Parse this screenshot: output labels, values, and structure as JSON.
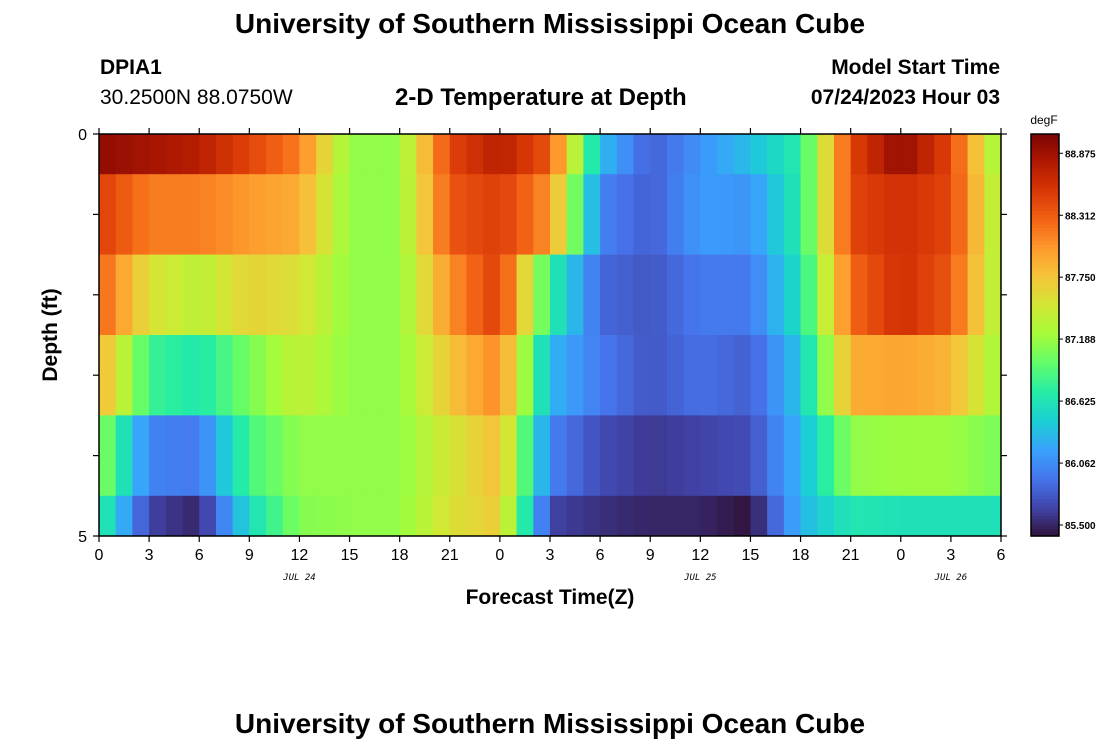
{
  "header": {
    "title": "University of Southern Mississippi Ocean Cube",
    "station_id": "DPIA1",
    "coordinates": "30.2500N  88.0750W",
    "chart_title": "2-D Temperature at Depth",
    "model_label": "Model Start Time",
    "model_time": "07/24/2023 Hour 03"
  },
  "footer": {
    "title": "University of Southern Mississippi Ocean Cube"
  },
  "colors": {
    "palette": [
      "#30123b",
      "#4145ab",
      "#4675ed",
      "#39a2fc",
      "#1bcfd4",
      "#24eca6",
      "#61fc6c",
      "#a4fc3b",
      "#d1e834",
      "#f3c63a",
      "#fe9b2d",
      "#f36315",
      "#d93806",
      "#b11901",
      "#7a0403"
    ]
  },
  "chart_data": {
    "type": "heatmap",
    "title": "2-D Temperature at Depth",
    "xlabel": "Forecast Time(Z)",
    "ylabel": "Depth (ft)",
    "x_start_hour": 0,
    "x_end_hour": 54,
    "x_tick_step_hours": 3,
    "x_tick_labels": [
      "0",
      "3",
      "6",
      "9",
      "12",
      "15",
      "18",
      "21",
      "0",
      "3",
      "6",
      "9",
      "12",
      "15",
      "18",
      "21",
      "0",
      "3",
      "6"
    ],
    "date_labels": [
      {
        "label": "JUL 24",
        "hour": 12
      },
      {
        "label": "JUL 25",
        "hour": 36
      },
      {
        "label": "JUL 26",
        "hour": 51
      }
    ],
    "y_range": [
      0,
      5
    ],
    "y_tick_labels": [
      {
        "value": 0,
        "label": "0"
      },
      {
        "value": 5,
        "label": "5"
      }
    ],
    "y_minor_ticks": [
      0,
      1,
      2,
      3,
      4,
      5
    ],
    "depth_layers": [
      {
        "top": 0.0,
        "bottom": 0.5
      },
      {
        "top": 0.5,
        "bottom": 1.5
      },
      {
        "top": 1.5,
        "bottom": 2.5
      },
      {
        "top": 2.5,
        "bottom": 3.5
      },
      {
        "top": 3.5,
        "bottom": 4.5
      },
      {
        "top": 4.5,
        "bottom": 5.0
      }
    ],
    "keyframes_hours": [
      0,
      3,
      6,
      9,
      12,
      15,
      18,
      21,
      24,
      27,
      30,
      33,
      36,
      39,
      42,
      45,
      48,
      51,
      54
    ],
    "temperature_degF": [
      [
        88.95,
        88.85,
        88.75,
        88.45,
        88.15,
        87.15,
        87.15,
        88.45,
        88.75,
        88.35,
        86.35,
        85.8,
        86.1,
        86.35,
        86.7,
        88.45,
        88.95,
        88.45,
        87.1
      ],
      [
        88.5,
        88.15,
        88.15,
        88.0,
        87.9,
        87.15,
        87.15,
        88.35,
        88.5,
        88.05,
        86.0,
        85.8,
        86.15,
        86.1,
        86.7,
        88.45,
        88.6,
        88.45,
        87.2
      ],
      [
        88.3,
        87.55,
        87.35,
        87.65,
        87.55,
        87.15,
        87.15,
        88.05,
        88.5,
        86.75,
        85.85,
        85.75,
        85.95,
        85.95,
        86.6,
        88.25,
        88.6,
        88.35,
        87.2
      ],
      [
        87.9,
        86.8,
        86.65,
        87.05,
        87.4,
        87.15,
        87.15,
        87.75,
        88.1,
        86.3,
        85.95,
        85.75,
        85.9,
        85.8,
        86.4,
        87.9,
        87.95,
        87.85,
        87.2
      ],
      [
        87.2,
        86.0,
        85.95,
        86.85,
        87.15,
        87.15,
        87.15,
        87.5,
        87.8,
        86.0,
        85.7,
        85.6,
        85.65,
        85.7,
        86.3,
        87.15,
        87.2,
        87.2,
        87.05
      ],
      [
        86.8,
        85.65,
        85.5,
        86.55,
        87.1,
        87.15,
        87.15,
        87.55,
        87.7,
        85.65,
        85.55,
        85.5,
        85.5,
        85.4,
        86.3,
        86.65,
        86.6,
        86.6,
        86.6
      ]
    ],
    "colorbar": {
      "unit": "degF",
      "min": 85.4,
      "max": 89.05,
      "tick_values": [
        88.875,
        88.312,
        87.75,
        87.188,
        86.625,
        86.062,
        85.5
      ],
      "tick_labels": [
        "88.875",
        "88.312",
        "87.750",
        "87.188",
        "86.625",
        "86.062",
        "85.500"
      ]
    }
  }
}
